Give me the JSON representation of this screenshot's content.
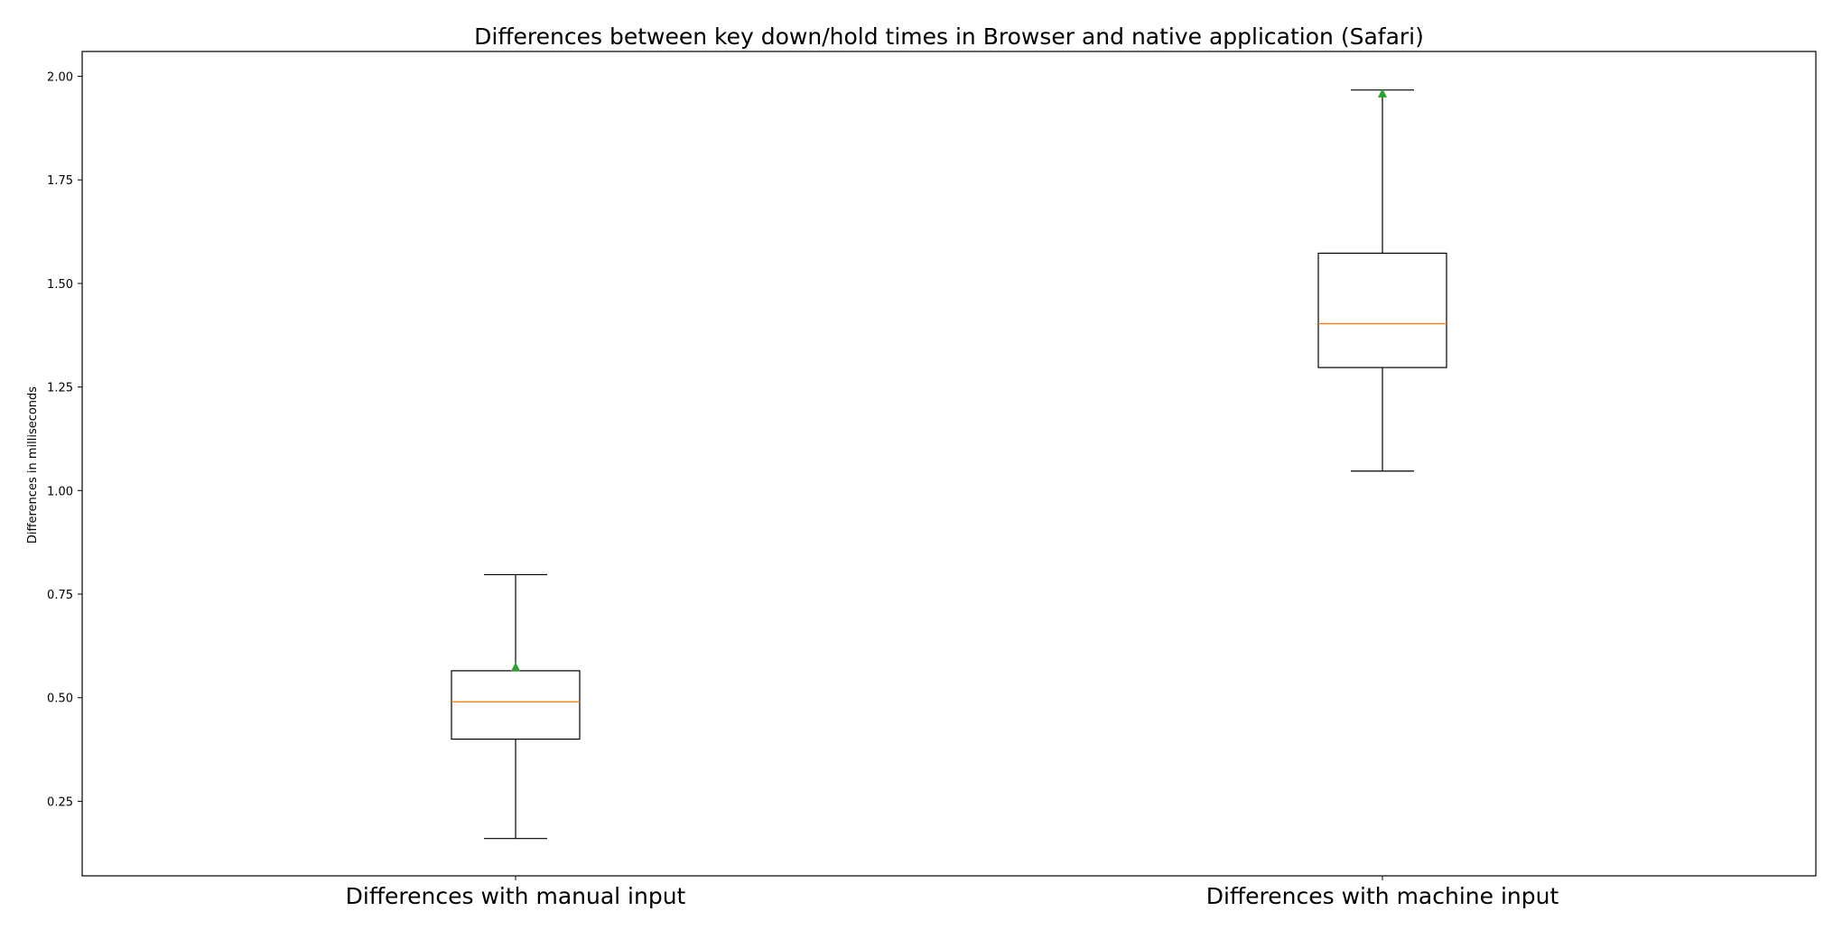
{
  "chart_data": {
    "type": "box",
    "title": "Differences between key down/hold times in Browser and native application (Safari)",
    "xlabel": "",
    "ylabel": "Differences in milliseconds",
    "ylim": [
      0.07,
      2.06
    ],
    "yticks": [
      0.25,
      0.5,
      0.75,
      1.0,
      1.25,
      1.5,
      1.75,
      2.0
    ],
    "ytick_labels": [
      "0.25",
      "0.50",
      "0.75",
      "1.00",
      "1.25",
      "1.50",
      "1.75",
      "2.00"
    ],
    "categories": [
      "Differences with manual input",
      "Differences with machine input"
    ],
    "boxes": [
      {
        "whisker_low": 0.16,
        "q1": 0.4,
        "median": 0.49,
        "q3": 0.565,
        "whisker_high": 0.797,
        "mean": 0.575
      },
      {
        "whisker_low": 1.047,
        "q1": 1.297,
        "median": 1.403,
        "q3": 1.573,
        "whisker_high": 1.967,
        "mean": 1.96
      }
    ],
    "grid": false,
    "colors": {
      "box": "#000000",
      "median": "#ff7f0e",
      "mean": "#2ca02c"
    }
  }
}
